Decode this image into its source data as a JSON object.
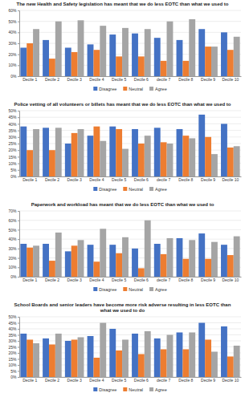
{
  "chart_data": [
    {
      "type": "bar",
      "title": "The new Health and Safety legislation has meant that we do less EOTC than what we used to",
      "categories": [
        "Decile 1",
        "Decile 2",
        "Decile 3",
        "Decile 4",
        "Decile 5",
        "Decile 6",
        "decile 7",
        "Decile 8",
        "Decile 9",
        "Decile 10"
      ],
      "series": [
        {
          "name": "Disagree",
          "color": "#4472C4",
          "values": [
            0.26,
            0.33,
            0.26,
            0.29,
            0.38,
            0.39,
            0.35,
            0.33,
            0.43,
            0.4
          ]
        },
        {
          "name": "Neutral",
          "color": "#ED7D31",
          "values": [
            0.3,
            0.16,
            0.22,
            0.24,
            0.18,
            0.18,
            0.14,
            0.14,
            0.27,
            0.24
          ]
        },
        {
          "name": "Agree",
          "color": "#A5A5A5",
          "values": [
            0.43,
            0.5,
            0.51,
            0.46,
            0.44,
            0.43,
            0.5,
            0.52,
            0.27,
            0.36
          ]
        }
      ],
      "ylim": [
        0,
        0.6
      ],
      "yticks": [
        {
          "value": 0,
          "label": "0%"
        },
        {
          "value": 0.1,
          "label": "10%"
        },
        {
          "value": 0.2,
          "label": "20%"
        },
        {
          "value": 0.3,
          "label": "30%"
        },
        {
          "value": 0.4,
          "label": "40%"
        },
        {
          "value": 0.5,
          "label": "50%"
        },
        {
          "value": 0.6,
          "label": "60%"
        }
      ],
      "grid": true,
      "legend": "bottom"
    },
    {
      "type": "bar",
      "title": "Police vetting of all volunteers or billets has meant that we do less EOTC than what we used to",
      "categories": [
        "Decile 1",
        "Decile 2",
        "Decile 3",
        "Decile 4",
        "Decile 5",
        "Decile 6",
        "decile 7",
        "Decile 8",
        "Decile 9",
        "Decile 10"
      ],
      "series": [
        {
          "name": "Disagree",
          "color": "#4472C4",
          "values": [
            0.38,
            0.37,
            0.25,
            0.31,
            0.38,
            0.36,
            0.37,
            0.36,
            0.47,
            0.4
          ]
        },
        {
          "name": "Neutral",
          "color": "#ED7D31",
          "values": [
            0.2,
            0.2,
            0.33,
            0.38,
            0.36,
            0.25,
            0.26,
            0.31,
            0.3,
            0.22
          ]
        },
        {
          "name": "Agree",
          "color": "#A5A5A5",
          "values": [
            0.36,
            0.37,
            0.36,
            0.27,
            0.21,
            0.31,
            0.25,
            0.29,
            0.17,
            0.23
          ]
        }
      ],
      "ylim": [
        0,
        0.5
      ],
      "yticks": [
        {
          "value": 0,
          "label": "0%"
        },
        {
          "value": 0.05,
          "label": "5%"
        },
        {
          "value": 0.1,
          "label": "10%"
        },
        {
          "value": 0.15,
          "label": "15%"
        },
        {
          "value": 0.2,
          "label": "20%"
        },
        {
          "value": 0.25,
          "label": "25%"
        },
        {
          "value": 0.3,
          "label": "30%"
        },
        {
          "value": 0.35,
          "label": "35%"
        },
        {
          "value": 0.4,
          "label": "40%"
        },
        {
          "value": 0.45,
          "label": "45%"
        },
        {
          "value": 0.5,
          "label": "50%"
        }
      ],
      "grid": true,
      "legend": "bottom"
    },
    {
      "type": "bar",
      "title": "Paperwork and workload has meant that we do less EOTC than what we used to",
      "categories": [
        "Decile 1",
        "Decile 2",
        "Decile 3",
        "Decile 4",
        "Decile 5",
        "Decile 6",
        "decile 7",
        "Decile 8",
        "Decile 9",
        "Decile 10"
      ],
      "series": [
        {
          "name": "Disagree",
          "color": "#4472C4",
          "values": [
            0.35,
            0.35,
            0.27,
            0.34,
            0.34,
            0.3,
            0.35,
            0.41,
            0.46,
            0.34
          ]
        },
        {
          "name": "Neutral",
          "color": "#ED7D31",
          "values": [
            0.31,
            0.17,
            0.33,
            0.16,
            0.25,
            0.09,
            0.24,
            0.19,
            0.19,
            0.23
          ]
        },
        {
          "name": "Agree",
          "color": "#A5A5A5",
          "values": [
            0.33,
            0.47,
            0.39,
            0.51,
            0.42,
            0.6,
            0.41,
            0.39,
            0.37,
            0.43
          ]
        }
      ],
      "ylim": [
        0,
        0.7
      ],
      "yticks": [
        {
          "value": 0,
          "label": "0%"
        },
        {
          "value": 0.1,
          "label": "10%"
        },
        {
          "value": 0.2,
          "label": "20%"
        },
        {
          "value": 0.3,
          "label": "30%"
        },
        {
          "value": 0.4,
          "label": "40%"
        },
        {
          "value": 0.5,
          "label": "50%"
        },
        {
          "value": 0.6,
          "label": "60%"
        },
        {
          "value": 0.7,
          "label": "70%"
        }
      ],
      "grid": true,
      "legend": "bottom"
    },
    {
      "type": "bar",
      "title": "School Boards and senior leaders have become more risk adverse resulting in less EOTC than\nwhat we used to do",
      "categories": [
        "Decile 1",
        "Decile 2",
        "Decile 3",
        "Decile 4",
        "Decile 5",
        "Decile 6",
        "decile 7",
        "Decile 8",
        "Decile 9",
        "Decile 10"
      ],
      "series": [
        {
          "name": "Disagree",
          "color": "#4472C4",
          "values": [
            0.36,
            0.32,
            0.3,
            0.34,
            0.4,
            0.36,
            0.32,
            0.37,
            0.45,
            0.42
          ]
        },
        {
          "name": "Neutral",
          "color": "#ED7D31",
          "values": [
            0.31,
            0.27,
            0.31,
            0.16,
            0.22,
            0.19,
            0.23,
            0.23,
            0.31,
            0.17
          ]
        },
        {
          "name": "Agree",
          "color": "#A5A5A5",
          "values": [
            0.28,
            0.36,
            0.33,
            0.45,
            0.31,
            0.38,
            0.35,
            0.37,
            0.21,
            0.26
          ]
        }
      ],
      "ylim": [
        0,
        0.5
      ],
      "yticks": [
        {
          "value": 0,
          "label": "0%"
        },
        {
          "value": 0.05,
          "label": "5%"
        },
        {
          "value": 0.1,
          "label": "10%"
        },
        {
          "value": 0.15,
          "label": "15%"
        },
        {
          "value": 0.2,
          "label": "20%"
        },
        {
          "value": 0.25,
          "label": "25%"
        },
        {
          "value": 0.3,
          "label": "30%"
        },
        {
          "value": 0.35,
          "label": "35%"
        },
        {
          "value": 0.4,
          "label": "40%"
        },
        {
          "value": 0.45,
          "label": "45%"
        },
        {
          "value": 0.5,
          "label": "50%"
        }
      ],
      "grid": true,
      "legend": "bottom"
    }
  ]
}
